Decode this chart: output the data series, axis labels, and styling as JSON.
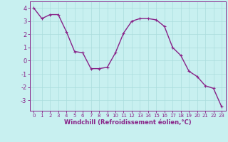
{
  "x": [
    0,
    1,
    2,
    3,
    4,
    5,
    6,
    7,
    8,
    9,
    10,
    11,
    12,
    13,
    14,
    15,
    16,
    17,
    18,
    19,
    20,
    21,
    22,
    23
  ],
  "y": [
    4.0,
    3.2,
    3.5,
    3.5,
    2.2,
    0.7,
    0.6,
    -0.6,
    -0.6,
    -0.5,
    0.6,
    2.1,
    3.0,
    3.2,
    3.2,
    3.1,
    2.6,
    1.0,
    0.4,
    -0.8,
    -1.2,
    -1.9,
    -2.1,
    -3.5
  ],
  "line_color": "#882288",
  "marker": "+",
  "marker_size": 3,
  "bg_color": "#c8f0f0",
  "grid_color": "#aadddd",
  "xlabel": "Windchill (Refroidissement éolien,°C)",
  "ylabel": "",
  "xlim": [
    -0.5,
    23.5
  ],
  "ylim": [
    -3.8,
    4.5
  ],
  "yticks": [
    -3,
    -2,
    -1,
    0,
    1,
    2,
    3,
    4
  ],
  "xticks": [
    0,
    1,
    2,
    3,
    4,
    5,
    6,
    7,
    8,
    9,
    10,
    11,
    12,
    13,
    14,
    15,
    16,
    17,
    18,
    19,
    20,
    21,
    22,
    23
  ],
  "tick_color": "#882288",
  "label_color": "#882288",
  "spine_color": "#882288",
  "grid_major_color": "#aadddd",
  "line_width": 1.0,
  "marker_color": "#882288"
}
